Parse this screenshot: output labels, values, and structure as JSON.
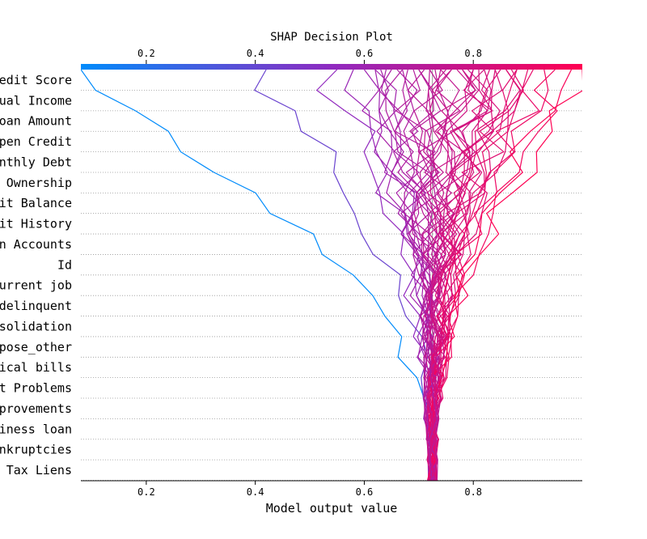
{
  "chart_data": {
    "type": "line",
    "title": "SHAP Decision Plot",
    "xlabel": "Model output value",
    "xlim": [
      0.08,
      1.0
    ],
    "xticks": [
      0.2,
      0.4,
      0.6,
      0.8
    ],
    "xtick_labels": [
      "0.2",
      "0.4",
      "0.6",
      "0.8"
    ],
    "base_value": 0.725,
    "features": [
      "Credit Score",
      "Annual Income",
      "Current Loan Amount",
      "Maximum Open Credit",
      "Monthly Debt",
      "Home Ownership",
      "Current Credit Balance",
      "Years of Credit History",
      "Number of Open Accounts",
      "Id",
      "Years in current job",
      "Months since last delinquent",
      "Purpose_debt consolidation",
      "Purpose_other",
      "Purpose_medical bills",
      "Number of Credit Problems",
      "Purpose_home improvements",
      "Purpose_business loan",
      "Bankruptcies",
      "Tax Liens"
    ],
    "feature_labels_visible": [
      "edit Score",
      "ual Income",
      "oan Amount",
      "pen Credit",
      "nthly Debt",
      " Ownership",
      "it Balance",
      "it History",
      "n Accounts",
      "Id",
      "urrent job",
      "delinquent",
      "solidation",
      "pose_other",
      "ical bills",
      "t Problems",
      "provements",
      "iness loan",
      "nkruptcies",
      " Tax Liens"
    ],
    "grid": "dotted horizontal",
    "colorbar": {
      "position": "top",
      "range": [
        0.08,
        1.0
      ],
      "colormap": [
        "#008bfb",
        "#ff0052"
      ]
    }
  }
}
